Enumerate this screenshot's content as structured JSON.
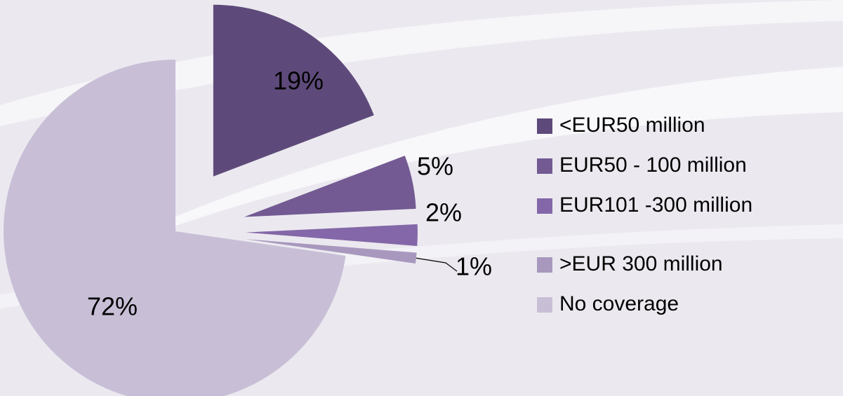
{
  "chart_data": {
    "type": "pie",
    "categories": [
      "<EUR50 million",
      "EUR50 - 100 million",
      "EUR101 -300 million",
      "˃EUR 300 million",
      "No coverage"
    ],
    "values": [
      19,
      5,
      2,
      1,
      72
    ],
    "value_labels": [
      "19%",
      "5%",
      "2%",
      "1%",
      "72%"
    ],
    "colors": [
      "#5e4a7a",
      "#735a93",
      "#8467a8",
      "#a898be",
      "#c8bfd7"
    ],
    "legend": "right"
  }
}
